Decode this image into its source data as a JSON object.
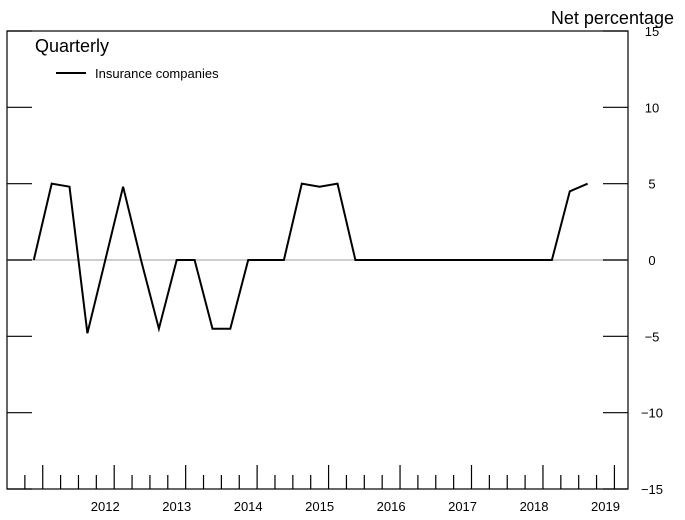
{
  "chart_data": {
    "type": "line",
    "title": "Quarterly",
    "ylabel": "Net percentage",
    "xlabel": "",
    "ylim": [
      -15,
      15
    ],
    "yticks": [
      15,
      10,
      5,
      0,
      -5,
      -10,
      -15
    ],
    "ytick_labels": [
      "15",
      "10",
      "5",
      "0",
      "−5",
      "−10",
      "−15"
    ],
    "year_labels": [
      "2012",
      "2013",
      "2014",
      "2015",
      "2016",
      "2017",
      "2018",
      "2019"
    ],
    "grid": false,
    "zero_line": true,
    "legend_position": "top-left",
    "series": [
      {
        "name": "Insurance companies",
        "color": "#000000",
        "x": [
          "2011:Q4",
          "2012:Q1",
          "2012:Q2",
          "2012:Q3",
          "2012:Q4",
          "2013:Q1",
          "2013:Q2",
          "2013:Q3",
          "2013:Q4",
          "2014:Q1",
          "2014:Q2",
          "2014:Q3",
          "2014:Q4",
          "2015:Q1",
          "2015:Q2",
          "2015:Q3",
          "2015:Q4",
          "2016:Q1",
          "2016:Q2",
          "2016:Q3",
          "2016:Q4",
          "2017:Q1",
          "2017:Q2",
          "2017:Q3",
          "2017:Q4",
          "2018:Q1",
          "2018:Q2",
          "2018:Q3",
          "2018:Q4",
          "2019:Q1",
          "2019:Q2",
          "2019:Q3"
        ],
        "values": [
          0,
          5,
          4.8,
          -4.8,
          0,
          4.8,
          0,
          -4.5,
          0,
          0,
          -4.5,
          -4.5,
          0,
          0,
          0,
          5,
          4.8,
          5,
          0,
          0,
          0,
          0,
          0,
          0,
          0,
          0,
          0,
          0,
          0,
          0,
          4.5,
          5
        ]
      }
    ]
  }
}
